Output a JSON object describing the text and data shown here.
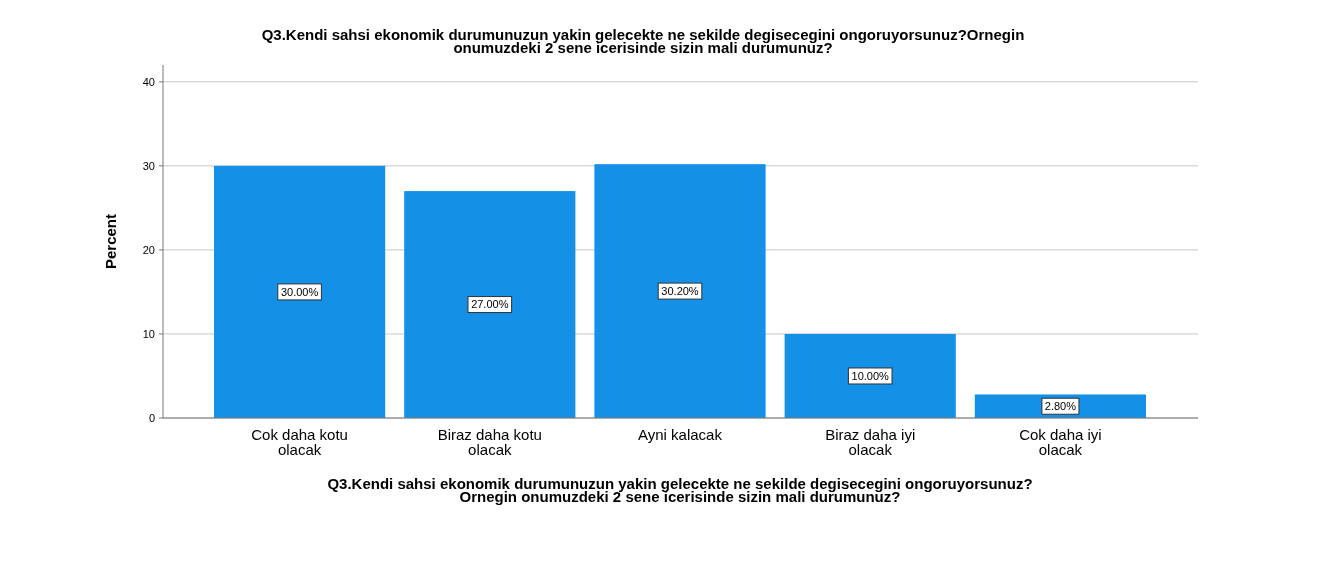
{
  "chart_data": {
    "type": "bar",
    "title": "Q3.Kendi sahsi ekonomik durumunuzun yakin gelecekte ne sekilde degisecegini ongoruyorsunuz?Ornegin onumuzdeki 2 sene icerisinde sizin mali durumunuz?",
    "xlabel": "Q3.Kendi sahsi ekonomik durumunuzun yakin gelecekte ne sekilde degisecegini ongoruyorsunuz? Ornegin onumuzdeki 2 sene icerisinde sizin mali durumunuz?",
    "ylabel": "Percent",
    "categories": [
      "Cok daha kotu olacak",
      "Biraz daha kotu olacak",
      "Ayni kalacak",
      "Biraz daha iyi olacak",
      "Cok daha iyi olacak"
    ],
    "values": [
      30,
      27,
      30.2,
      10,
      2.8
    ],
    "value_labels": [
      "30.00%",
      "27.00%",
      "30.20%",
      "10.00%",
      "2.80%"
    ],
    "color": "#1491e6",
    "ylim": [
      0,
      42
    ],
    "yticks": [
      0,
      10,
      20,
      30,
      40
    ],
    "grid": "y"
  }
}
